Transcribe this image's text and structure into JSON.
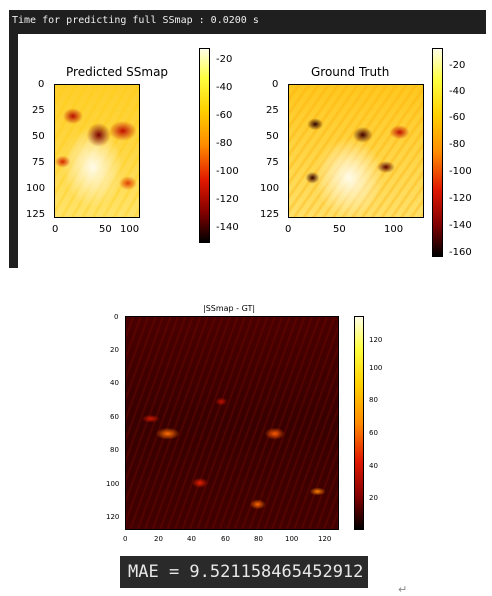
{
  "notebook": {
    "output_line": "Time for predicting full SSmap : 0.0200 s"
  },
  "plots": {
    "predicted": {
      "title": "Predicted SSmap",
      "y_ticks": [
        "0",
        "25",
        "50",
        "75",
        "100",
        "125"
      ],
      "x_ticks": [
        "0",
        "50",
        "100"
      ],
      "colorbar_ticks": [
        "-20",
        "-40",
        "-60",
        "-80",
        "-100",
        "-120",
        "-140"
      ]
    },
    "ground_truth": {
      "title": "Ground Truth",
      "y_ticks": [
        "0",
        "25",
        "50",
        "75",
        "100",
        "125"
      ],
      "x_ticks": [
        "0",
        "50",
        "100"
      ],
      "colorbar_ticks": [
        "-20",
        "-40",
        "-60",
        "-80",
        "-100",
        "-120",
        "-140",
        "-160"
      ]
    },
    "difference": {
      "title": "|SSmap - GT|",
      "y_ticks": [
        "0",
        "20",
        "40",
        "60",
        "80",
        "100",
        "120"
      ],
      "x_ticks": [
        "0",
        "20",
        "40",
        "60",
        "80",
        "100",
        "120"
      ],
      "colorbar_ticks": [
        "120",
        "100",
        "80",
        "60",
        "40",
        "20"
      ]
    }
  },
  "result": {
    "mae_text": "MAE = 9.521158465452912"
  },
  "colors": {
    "notebook_bar": "#1f1f1f",
    "result_box": "#2a2a2a",
    "colormap": "hot"
  }
}
